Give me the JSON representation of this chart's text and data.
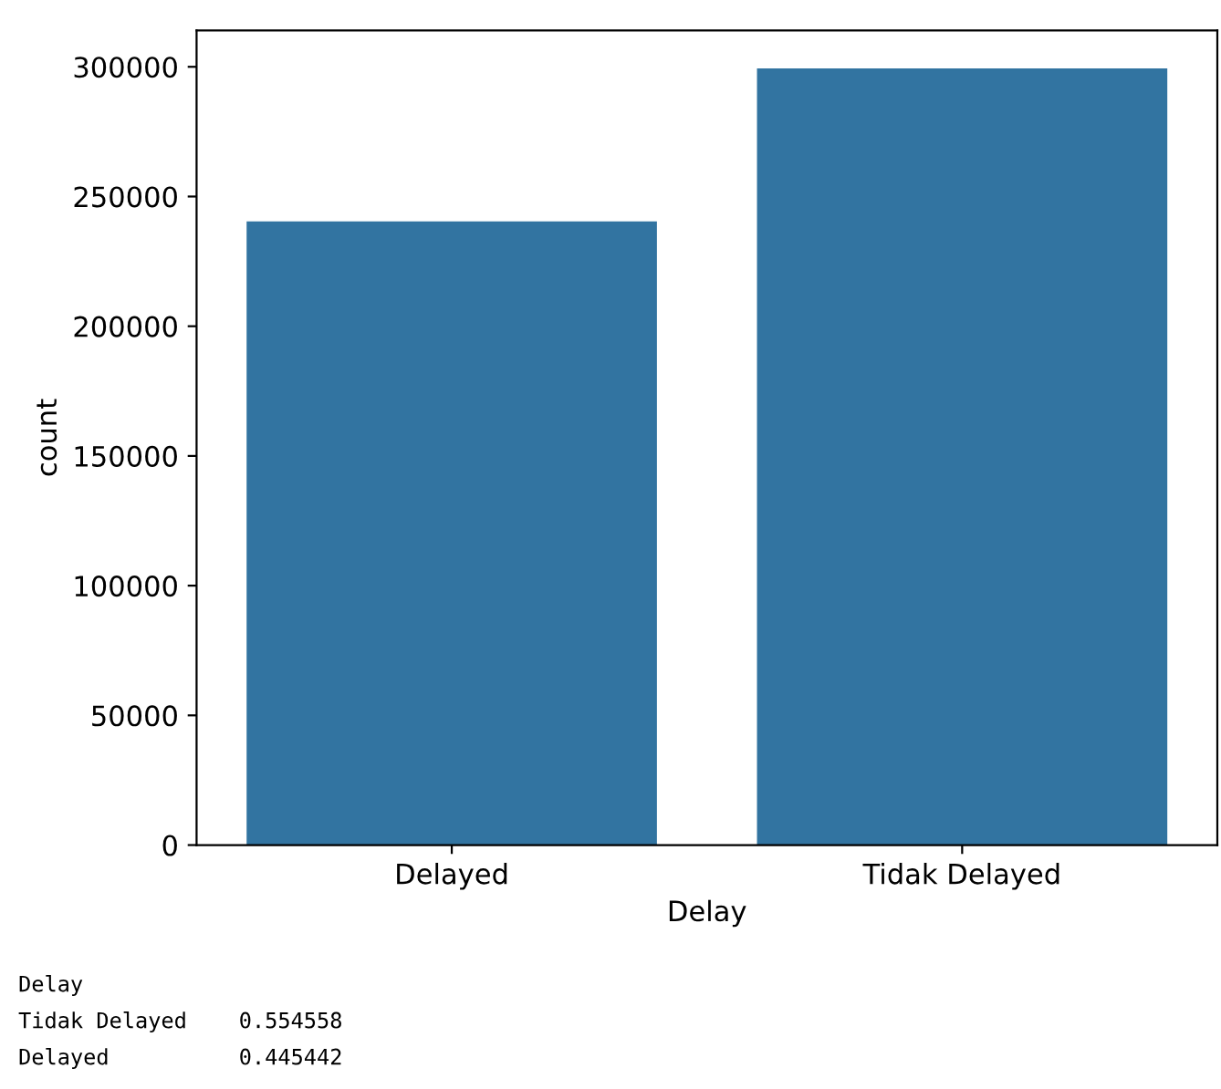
{
  "chart_data": {
    "type": "bar",
    "xlabel": "Delay",
    "ylabel": "count",
    "categories": [
      "Delayed",
      "Tidak Delayed"
    ],
    "values": [
      240000,
      299000
    ],
    "color": "#3274a1",
    "ylim": [
      0,
      314000
    ],
    "yticks": [
      0,
      50000,
      100000,
      150000,
      200000,
      250000,
      300000
    ],
    "grid": false,
    "annotations": [
      "Delay",
      "Tidak Delayed    0.554558",
      "Delayed          0.445442"
    ]
  }
}
